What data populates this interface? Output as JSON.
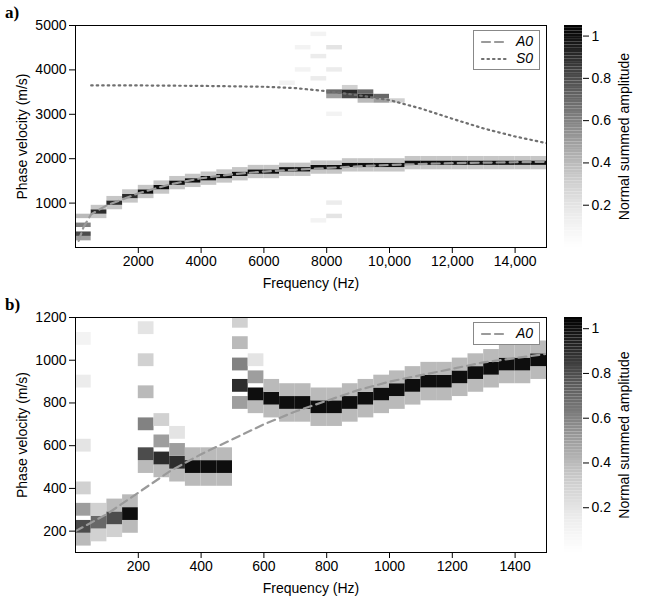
{
  "chart_data": [
    {
      "type": "heatmap",
      "panel": "a)",
      "x_label": "Frequency (Hz)",
      "y_label": "Phase velocity (m/s)",
      "xlim": [
        0,
        15000
      ],
      "ylim": [
        0,
        5000
      ],
      "xticks": [
        2000,
        4000,
        6000,
        8000,
        {
          "value": 10000,
          "label": "10,000"
        },
        {
          "value": 12000,
          "label": "12,000"
        },
        {
          "value": 14000,
          "label": "14,000"
        }
      ],
      "yticks": [
        1000,
        2000,
        3000,
        4000,
        5000
      ],
      "legend": "top-right",
      "cell_size": [
        500,
        100
      ],
      "cells": [
        [
          250,
          200,
          0.5
        ],
        [
          250,
          300,
          0.8
        ],
        [
          250,
          500,
          0.6
        ],
        [
          250,
          700,
          0.4
        ],
        [
          750,
          700,
          0.35
        ],
        [
          750,
          800,
          0.9
        ],
        [
          750,
          900,
          0.35
        ],
        [
          1250,
          900,
          0.35
        ],
        [
          1250,
          1000,
          0.9
        ],
        [
          1250,
          1100,
          0.35
        ],
        [
          1750,
          1050,
          0.35
        ],
        [
          1750,
          1150,
          0.9
        ],
        [
          1750,
          1250,
          0.35
        ],
        [
          2250,
          1150,
          0.35
        ],
        [
          2250,
          1250,
          1
        ],
        [
          2250,
          1350,
          0.35
        ],
        [
          2750,
          1250,
          0.35
        ],
        [
          2750,
          1350,
          1
        ],
        [
          2750,
          1450,
          0.35
        ],
        [
          3250,
          1350,
          0.35
        ],
        [
          3250,
          1450,
          1
        ],
        [
          3250,
          1550,
          0.35
        ],
        [
          3750,
          1400,
          0.35
        ],
        [
          3750,
          1500,
          1
        ],
        [
          3750,
          1600,
          0.35
        ],
        [
          4250,
          1450,
          0.35
        ],
        [
          4250,
          1550,
          1
        ],
        [
          4250,
          1650,
          0.35
        ],
        [
          4750,
          1500,
          0.35
        ],
        [
          4750,
          1600,
          1
        ],
        [
          4750,
          1700,
          0.35
        ],
        [
          5250,
          1550,
          0.35
        ],
        [
          5250,
          1650,
          1
        ],
        [
          5250,
          1750,
          0.35
        ],
        [
          5750,
          1600,
          0.35
        ],
        [
          5750,
          1700,
          1
        ],
        [
          5750,
          1800,
          0.35
        ],
        [
          6250,
          1600,
          0.35
        ],
        [
          6250,
          1700,
          1
        ],
        [
          6250,
          1800,
          0.35
        ],
        [
          6750,
          1650,
          0.35
        ],
        [
          6750,
          1750,
          1
        ],
        [
          6750,
          1850,
          0.35
        ],
        [
          7250,
          1650,
          0.35
        ],
        [
          7250,
          1750,
          1
        ],
        [
          7250,
          1850,
          0.35
        ],
        [
          7750,
          1700,
          0.35
        ],
        [
          7750,
          1800,
          1
        ],
        [
          7750,
          1900,
          0.35
        ],
        [
          8250,
          1700,
          0.35
        ],
        [
          8250,
          1800,
          1
        ],
        [
          8250,
          1900,
          0.35
        ],
        [
          8750,
          1750,
          0.35
        ],
        [
          8750,
          1850,
          1
        ],
        [
          8750,
          1950,
          0.35
        ],
        [
          9250,
          1750,
          0.35
        ],
        [
          9250,
          1850,
          1
        ],
        [
          9250,
          1950,
          0.35
        ],
        [
          9750,
          1750,
          0.35
        ],
        [
          9750,
          1850,
          1
        ],
        [
          9750,
          1950,
          0.35
        ],
        [
          10250,
          1750,
          0.35
        ],
        [
          10250,
          1850,
          1
        ],
        [
          10250,
          1950,
          0.35
        ],
        [
          10750,
          1800,
          0.35
        ],
        [
          10750,
          1900,
          1
        ],
        [
          10750,
          2000,
          0.35
        ],
        [
          11250,
          1800,
          0.35
        ],
        [
          11250,
          1900,
          1
        ],
        [
          11250,
          2000,
          0.35
        ],
        [
          11750,
          1800,
          0.35
        ],
        [
          11750,
          1900,
          1
        ],
        [
          11750,
          2000,
          0.35
        ],
        [
          12250,
          1800,
          0.35
        ],
        [
          12250,
          1900,
          1
        ],
        [
          12250,
          2000,
          0.35
        ],
        [
          12750,
          1800,
          0.35
        ],
        [
          12750,
          1900,
          1
        ],
        [
          12750,
          2000,
          0.35
        ],
        [
          13250,
          1800,
          0.35
        ],
        [
          13250,
          1900,
          1
        ],
        [
          13250,
          2000,
          0.35
        ],
        [
          13750,
          1800,
          0.35
        ],
        [
          13750,
          1900,
          1
        ],
        [
          13750,
          2000,
          0.35
        ],
        [
          14250,
          1800,
          0.35
        ],
        [
          14250,
          1900,
          1
        ],
        [
          14250,
          2000,
          0.35
        ],
        [
          14750,
          1800,
          0.35
        ],
        [
          14750,
          1900,
          1
        ],
        [
          14750,
          2000,
          0.35
        ],
        [
          8250,
          3400,
          0.5
        ],
        [
          8250,
          3500,
          0.7
        ],
        [
          8750,
          3400,
          0.8
        ],
        [
          8750,
          3500,
          0.9
        ],
        [
          8750,
          3600,
          0.3
        ],
        [
          9250,
          3300,
          0.4
        ],
        [
          9250,
          3400,
          0.9
        ],
        [
          9250,
          3500,
          0.7
        ],
        [
          9750,
          3300,
          0.5
        ],
        [
          9750,
          3400,
          0.7
        ],
        [
          10250,
          3300,
          0.3
        ],
        [
          6750,
          3700,
          0.1
        ],
        [
          7250,
          4000,
          0.1
        ],
        [
          7250,
          4500,
          0.1
        ],
        [
          7750,
          3800,
          0.15
        ],
        [
          7750,
          4300,
          0.15
        ],
        [
          7750,
          4800,
          0.1
        ],
        [
          8250,
          4000,
          0.15
        ],
        [
          8250,
          4500,
          0.2
        ],
        [
          8250,
          3000,
          0.1
        ],
        [
          8250,
          1000,
          0.15
        ],
        [
          8250,
          700,
          0.2
        ],
        [
          7750,
          600,
          0.1
        ]
      ],
      "colorbar": {
        "label": "Normal summed amplitude",
        "range": [
          0,
          1.05
        ],
        "ticks": [
          0.2,
          0.4,
          0.6,
          0.8,
          1
        ]
      },
      "series": [
        {
          "name": "A0",
          "type": "line",
          "color": "#9a9a9a",
          "line_style": "dashed",
          "x": [
            100,
            250,
            500,
            1000,
            2000,
            3000,
            4000,
            5000,
            6000,
            7000,
            8000,
            9000,
            10000,
            11000,
            12000,
            13000,
            14000,
            15000
          ],
          "values": [
            150,
            450,
            750,
            950,
            1220,
            1420,
            1560,
            1650,
            1710,
            1750,
            1790,
            1830,
            1860,
            1880,
            1900,
            1910,
            1920,
            1930
          ]
        },
        {
          "name": "S0",
          "type": "line",
          "color": "#707070",
          "line_style": "dotted",
          "x": [
            500,
            2000,
            4000,
            6000,
            7000,
            8000,
            9000,
            10000,
            11000,
            12000,
            13000,
            14000,
            15000
          ],
          "values": [
            3650,
            3650,
            3640,
            3620,
            3590,
            3520,
            3430,
            3320,
            3130,
            2900,
            2680,
            2500,
            2350
          ]
        }
      ]
    },
    {
      "type": "heatmap",
      "panel": "b)",
      "x_label": "Frequency (Hz)",
      "y_label": "Phase velocity (m/s)",
      "xlim": [
        0,
        1500
      ],
      "ylim": [
        100,
        1200
      ],
      "xticks": [
        200,
        400,
        600,
        800,
        1000,
        1200,
        1400
      ],
      "yticks": [
        200,
        400,
        600,
        800,
        1000,
        1200
      ],
      "legend": "top-right",
      "cell_size": [
        50,
        60
      ],
      "cells": [
        [
          25,
          160,
          0.4
        ],
        [
          25,
          220,
          0.8
        ],
        [
          25,
          300,
          0.5
        ],
        [
          25,
          400,
          0.3
        ],
        [
          25,
          600,
          0.2
        ],
        [
          25,
          900,
          0.15
        ],
        [
          25,
          1100,
          0.1
        ],
        [
          75,
          180,
          0.3
        ],
        [
          75,
          240,
          0.7
        ],
        [
          75,
          300,
          0.3
        ],
        [
          125,
          200,
          0.3
        ],
        [
          125,
          260,
          0.8
        ],
        [
          125,
          320,
          0.4
        ],
        [
          175,
          220,
          0.4
        ],
        [
          175,
          280,
          1
        ],
        [
          175,
          340,
          0.4
        ],
        [
          225,
          500,
          0.4
        ],
        [
          225,
          560,
          0.8
        ],
        [
          225,
          700,
          0.6
        ],
        [
          225,
          850,
          0.4
        ],
        [
          225,
          1000,
          0.3
        ],
        [
          225,
          1150,
          0.2
        ],
        [
          275,
          480,
          0.4
        ],
        [
          275,
          540,
          0.9
        ],
        [
          275,
          620,
          0.5
        ],
        [
          275,
          720,
          0.3
        ],
        [
          325,
          460,
          0.4
        ],
        [
          325,
          520,
          0.9
        ],
        [
          325,
          580,
          0.5
        ],
        [
          325,
          660,
          0.2
        ],
        [
          375,
          440,
          0.4
        ],
        [
          375,
          500,
          1
        ],
        [
          375,
          560,
          0.4
        ],
        [
          425,
          440,
          0.4
        ],
        [
          425,
          500,
          1
        ],
        [
          425,
          560,
          0.4
        ],
        [
          475,
          440,
          0.4
        ],
        [
          475,
          500,
          1
        ],
        [
          475,
          560,
          0.4
        ],
        [
          525,
          800,
          0.5
        ],
        [
          525,
          880,
          0.9
        ],
        [
          525,
          980,
          0.6
        ],
        [
          525,
          1080,
          0.4
        ],
        [
          525,
          1180,
          0.3
        ],
        [
          575,
          780,
          0.4
        ],
        [
          575,
          840,
          1
        ],
        [
          575,
          920,
          0.5
        ],
        [
          575,
          1000,
          0.2
        ],
        [
          625,
          760,
          0.4
        ],
        [
          625,
          820,
          1
        ],
        [
          625,
          880,
          0.4
        ],
        [
          675,
          740,
          0.4
        ],
        [
          675,
          800,
          1
        ],
        [
          675,
          860,
          0.4
        ],
        [
          725,
          740,
          0.4
        ],
        [
          725,
          800,
          1
        ],
        [
          725,
          860,
          0.4
        ],
        [
          775,
          720,
          0.4
        ],
        [
          775,
          780,
          1
        ],
        [
          775,
          840,
          0.4
        ],
        [
          825,
          720,
          0.4
        ],
        [
          825,
          780,
          1
        ],
        [
          825,
          840,
          0.4
        ],
        [
          875,
          740,
          0.4
        ],
        [
          875,
          800,
          1
        ],
        [
          875,
          860,
          0.4
        ],
        [
          925,
          760,
          0.4
        ],
        [
          925,
          820,
          1
        ],
        [
          925,
          880,
          0.4
        ],
        [
          975,
          780,
          0.4
        ],
        [
          975,
          840,
          1
        ],
        [
          975,
          900,
          0.4
        ],
        [
          1025,
          800,
          0.4
        ],
        [
          1025,
          860,
          1
        ],
        [
          1025,
          920,
          0.4
        ],
        [
          1075,
          820,
          0.4
        ],
        [
          1075,
          880,
          1
        ],
        [
          1075,
          940,
          0.4
        ],
        [
          1125,
          840,
          0.4
        ],
        [
          1125,
          900,
          1
        ],
        [
          1125,
          960,
          0.4
        ],
        [
          1175,
          840,
          0.4
        ],
        [
          1175,
          900,
          1
        ],
        [
          1175,
          960,
          0.4
        ],
        [
          1225,
          860,
          0.4
        ],
        [
          1225,
          920,
          1
        ],
        [
          1225,
          980,
          0.4
        ],
        [
          1275,
          880,
          0.4
        ],
        [
          1275,
          940,
          1
        ],
        [
          1275,
          1000,
          0.4
        ],
        [
          1325,
          900,
          0.4
        ],
        [
          1325,
          960,
          1
        ],
        [
          1325,
          1020,
          0.4
        ],
        [
          1375,
          920,
          0.4
        ],
        [
          1375,
          980,
          1
        ],
        [
          1375,
          1040,
          0.4
        ],
        [
          1425,
          920,
          0.4
        ],
        [
          1425,
          980,
          1
        ],
        [
          1425,
          1040,
          0.4
        ],
        [
          1475,
          940,
          0.4
        ],
        [
          1475,
          1000,
          1
        ],
        [
          1475,
          1060,
          0.4
        ]
      ],
      "colorbar": {
        "label": "Normal summed amplitude",
        "range": [
          0,
          1.05
        ],
        "ticks": [
          0.2,
          0.4,
          0.6,
          0.8,
          1
        ]
      },
      "series": [
        {
          "name": "A0",
          "type": "line",
          "color": "#9a9a9a",
          "line_style": "dashed",
          "x": [
            0,
            100,
            200,
            300,
            400,
            500,
            600,
            700,
            800,
            900,
            1000,
            1100,
            1200,
            1300,
            1400,
            1500
          ],
          "values": [
            200,
            280,
            380,
            480,
            560,
            630,
            700,
            760,
            810,
            860,
            900,
            930,
            960,
            990,
            1010,
            1030
          ]
        }
      ]
    }
  ]
}
